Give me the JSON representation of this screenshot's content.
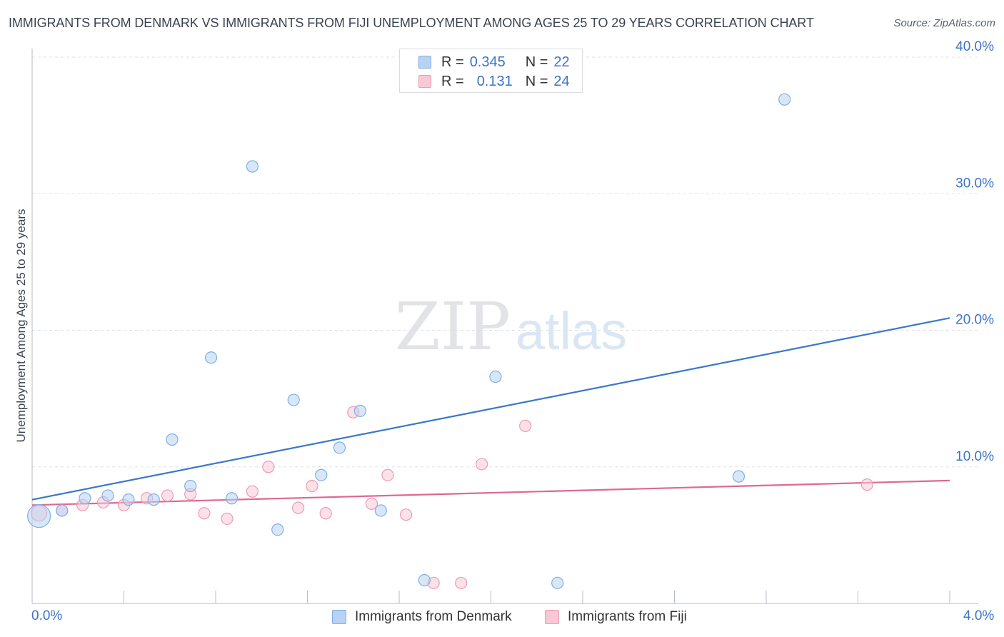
{
  "title": "IMMIGRANTS FROM DENMARK VS IMMIGRANTS FROM FIJI UNEMPLOYMENT AMONG AGES 25 TO 29 YEARS CORRELATION CHART",
  "source": "Source: ZipAtlas.com",
  "watermark": {
    "zip": "ZIP",
    "atlas": "atlas"
  },
  "legend": {
    "denmark": {
      "r_label": "R =",
      "r_value": "0.345",
      "n_label": "N =",
      "n_value": "22"
    },
    "fiji": {
      "r_label": "R =",
      "r_value": "0.131",
      "n_label": "N =",
      "n_value": "24"
    }
  },
  "colors": {
    "denmark_fill": "#b8d3f2",
    "denmark_stroke": "#7faee6",
    "denmark_line": "#3a78c9",
    "fiji_fill": "#f9c8d6",
    "fiji_stroke": "#ee9ab3",
    "fiji_line": "#e06891",
    "grid": "#dde0e5",
    "axis": "#b6bcc6",
    "value_text": "#3c73c8"
  },
  "chart_data": {
    "type": "scatter",
    "title": "IMMIGRANTS FROM DENMARK VS IMMIGRANTS FROM FIJI UNEMPLOYMENT AMONG AGES 25 TO 29 YEARS CORRELATION CHART",
    "xlabel": "",
    "ylabel": "Unemployment Among Ages 25 to 29 years",
    "xlim": [
      0,
      4.0
    ],
    "ylim": [
      0,
      40.0
    ],
    "x_tick_labels": [
      "0.0%",
      "4.0%"
    ],
    "y_ticks": [
      10,
      20,
      30,
      40
    ],
    "y_tick_labels": [
      "10.0%",
      "20.0%",
      "30.0%",
      "40.0%"
    ],
    "grid": true,
    "series": [
      {
        "name": "Immigrants from Denmark",
        "key": "denmark",
        "points": [
          {
            "x": 0.03,
            "y": 6.4,
            "s": "large"
          },
          {
            "x": 0.13,
            "y": 6.8,
            "s": "small"
          },
          {
            "x": 0.23,
            "y": 7.7,
            "s": "small"
          },
          {
            "x": 0.33,
            "y": 7.9,
            "s": "small"
          },
          {
            "x": 0.42,
            "y": 7.6,
            "s": "small"
          },
          {
            "x": 0.53,
            "y": 7.6,
            "s": "small"
          },
          {
            "x": 0.61,
            "y": 12.0,
            "s": "small"
          },
          {
            "x": 0.69,
            "y": 8.6,
            "s": "small"
          },
          {
            "x": 0.78,
            "y": 18.0,
            "s": "small"
          },
          {
            "x": 0.87,
            "y": 7.7,
            "s": "small"
          },
          {
            "x": 0.96,
            "y": 32.0,
            "s": "small"
          },
          {
            "x": 1.07,
            "y": 5.4,
            "s": "small"
          },
          {
            "x": 1.14,
            "y": 14.9,
            "s": "small"
          },
          {
            "x": 1.26,
            "y": 9.4,
            "s": "small"
          },
          {
            "x": 1.34,
            "y": 11.4,
            "s": "small"
          },
          {
            "x": 1.43,
            "y": 14.1,
            "s": "small"
          },
          {
            "x": 1.52,
            "y": 6.8,
            "s": "small"
          },
          {
            "x": 1.71,
            "y": 1.7,
            "s": "small"
          },
          {
            "x": 2.02,
            "y": 16.6,
            "s": "small"
          },
          {
            "x": 2.29,
            "y": 1.5,
            "s": "small"
          },
          {
            "x": 3.08,
            "y": 9.3,
            "s": "small"
          },
          {
            "x": 3.28,
            "y": 36.9,
            "s": "small"
          }
        ],
        "trend": {
          "x": [
            0.0,
            4.0
          ],
          "y": [
            7.6,
            20.9
          ]
        }
      },
      {
        "name": "Immigrants from Fiji",
        "key": "fiji",
        "points": [
          {
            "x": 0.03,
            "y": 6.6,
            "s": "medium"
          },
          {
            "x": 0.13,
            "y": 6.8,
            "s": "small"
          },
          {
            "x": 0.22,
            "y": 7.2,
            "s": "small"
          },
          {
            "x": 0.31,
            "y": 7.4,
            "s": "small"
          },
          {
            "x": 0.4,
            "y": 7.2,
            "s": "small"
          },
          {
            "x": 0.5,
            "y": 7.7,
            "s": "small"
          },
          {
            "x": 0.59,
            "y": 7.9,
            "s": "small"
          },
          {
            "x": 0.69,
            "y": 8.0,
            "s": "small"
          },
          {
            "x": 0.75,
            "y": 6.6,
            "s": "small"
          },
          {
            "x": 0.85,
            "y": 6.2,
            "s": "small"
          },
          {
            "x": 0.96,
            "y": 8.2,
            "s": "small"
          },
          {
            "x": 1.03,
            "y": 10.0,
            "s": "small"
          },
          {
            "x": 1.16,
            "y": 7.0,
            "s": "small"
          },
          {
            "x": 1.22,
            "y": 8.6,
            "s": "small"
          },
          {
            "x": 1.28,
            "y": 6.6,
            "s": "small"
          },
          {
            "x": 1.4,
            "y": 14.0,
            "s": "small"
          },
          {
            "x": 1.48,
            "y": 7.3,
            "s": "small"
          },
          {
            "x": 1.55,
            "y": 9.4,
            "s": "small"
          },
          {
            "x": 1.63,
            "y": 6.5,
            "s": "small"
          },
          {
            "x": 1.75,
            "y": 1.5,
            "s": "small"
          },
          {
            "x": 1.87,
            "y": 1.5,
            "s": "small"
          },
          {
            "x": 1.96,
            "y": 10.2,
            "s": "small"
          },
          {
            "x": 2.15,
            "y": 13.0,
            "s": "small"
          },
          {
            "x": 3.64,
            "y": 8.7,
            "s": "small"
          }
        ],
        "trend": {
          "x": [
            0.0,
            4.0
          ],
          "y": [
            7.2,
            9.0
          ]
        }
      }
    ]
  }
}
